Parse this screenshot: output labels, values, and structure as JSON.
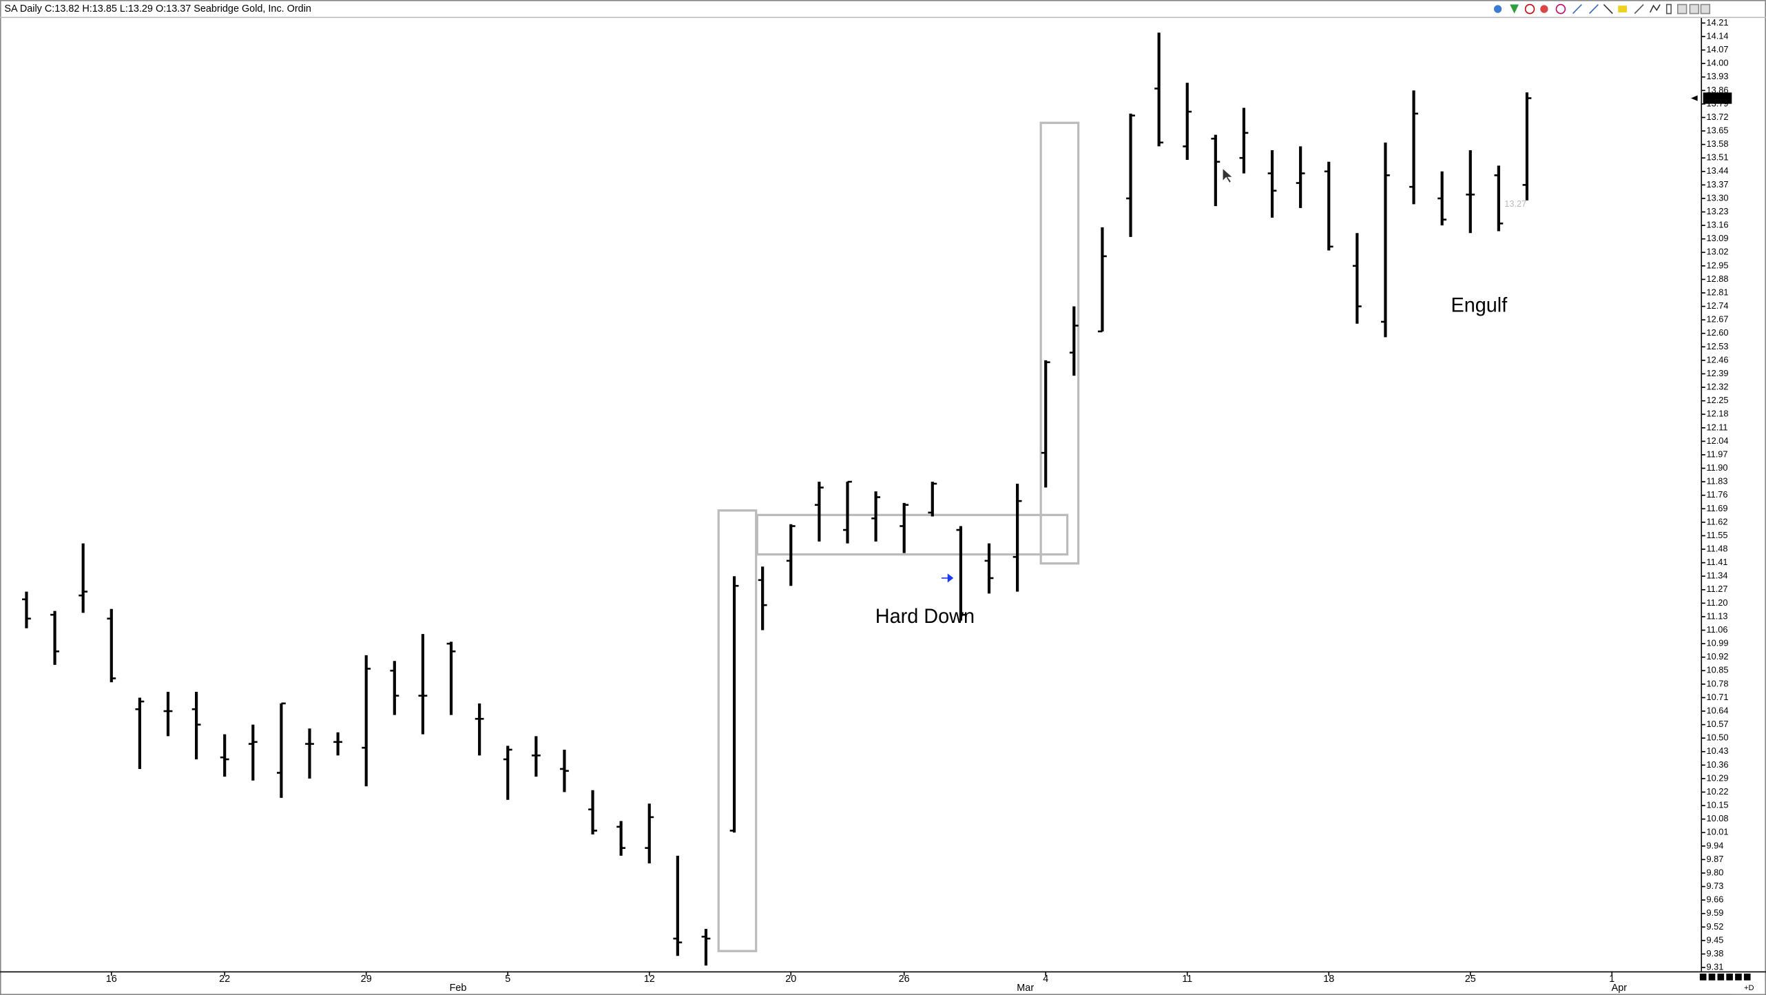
{
  "chart_data": {
    "type": "ohlc",
    "title": "SA Daily C:13.82 H:13.85 L:13.29 O:13.37 Seabridge Gold, Inc. Ordin",
    "categories": [
      null,
      null,
      null,
      "16",
      null,
      null,
      null,
      "22",
      null,
      null,
      null,
      null,
      "29",
      null,
      null,
      null,
      null,
      "5",
      null,
      null,
      null,
      null,
      "12",
      null,
      null,
      null,
      null,
      "20",
      null,
      null,
      null,
      "26",
      null,
      null,
      null,
      null,
      "4",
      null,
      null,
      null,
      null,
      "11",
      null,
      null,
      null,
      null,
      "18",
      null,
      null,
      null,
      null,
      "25",
      null,
      null,
      null,
      null,
      "1"
    ],
    "months": [
      "Feb",
      "Mar",
      "Apr"
    ],
    "open": [
      11.22,
      11.14,
      11.24,
      11.12,
      10.65,
      10.64,
      10.65,
      10.4,
      10.47,
      10.32,
      10.47,
      10.48,
      10.45,
      10.85,
      10.72,
      10.99,
      10.6,
      10.39,
      10.41,
      10.34,
      10.13,
      10.04,
      9.93,
      9.46,
      9.47,
      10.02,
      11.32,
      11.42,
      11.71,
      11.58,
      11.64,
      11.6,
      11.67,
      11.58,
      11.42,
      11.44,
      11.98,
      12.5,
      12.61,
      13.3,
      13.87,
      13.57,
      13.61,
      13.51,
      13.43,
      13.38,
      13.44,
      12.95,
      12.66,
      13.36,
      13.3,
      13.32,
      13.42,
      13.37,
      null,
      null,
      null
    ],
    "high": [
      11.26,
      11.16,
      11.51,
      11.17,
      10.71,
      10.74,
      10.74,
      10.52,
      10.57,
      10.68,
      10.55,
      10.53,
      10.93,
      10.9,
      11.04,
      11.0,
      10.68,
      10.46,
      10.51,
      10.44,
      10.23,
      10.07,
      10.16,
      9.89,
      9.51,
      11.34,
      11.39,
      11.61,
      11.83,
      11.83,
      11.78,
      11.72,
      11.83,
      11.6,
      11.51,
      11.82,
      12.46,
      12.74,
      13.15,
      13.74,
      14.16,
      13.9,
      13.63,
      13.77,
      13.55,
      13.57,
      13.49,
      13.12,
      13.59,
      13.86,
      13.44,
      13.55,
      13.47,
      13.85,
      null,
      null,
      null
    ],
    "low": [
      11.07,
      10.88,
      11.15,
      10.79,
      10.34,
      10.51,
      10.39,
      10.3,
      10.28,
      10.19,
      10.29,
      10.41,
      10.25,
      10.62,
      10.52,
      10.62,
      10.41,
      10.18,
      10.3,
      10.22,
      10.0,
      9.89,
      9.85,
      9.37,
      9.32,
      10.01,
      11.06,
      11.29,
      11.52,
      11.51,
      11.52,
      11.46,
      11.65,
      11.11,
      11.25,
      11.26,
      11.8,
      12.38,
      12.61,
      13.1,
      13.57,
      13.5,
      13.26,
      13.43,
      13.2,
      13.25,
      13.03,
      12.65,
      12.58,
      13.27,
      13.16,
      13.12,
      13.13,
      13.29,
      null,
      null,
      null
    ],
    "close": [
      11.12,
      10.95,
      11.26,
      10.81,
      10.69,
      10.64,
      10.57,
      10.39,
      10.48,
      10.68,
      10.47,
      10.48,
      10.86,
      10.72,
      10.72,
      10.95,
      10.6,
      10.44,
      10.41,
      10.33,
      10.02,
      9.93,
      10.09,
      9.44,
      9.46,
      11.29,
      11.19,
      11.6,
      11.8,
      11.83,
      11.75,
      11.71,
      11.82,
      11.14,
      11.33,
      11.73,
      12.45,
      12.64,
      13.0,
      13.73,
      13.59,
      13.75,
      13.49,
      13.64,
      13.34,
      13.43,
      13.05,
      12.74,
      13.42,
      13.74,
      13.19,
      13.32,
      13.17,
      13.82,
      null,
      null,
      null
    ],
    "color": "#000000",
    "ylim": [
      9.29,
      14.23
    ],
    "yticks": [
      9.31,
      9.38,
      9.45,
      9.52,
      9.59,
      9.66,
      9.73,
      {
        "value": 9.8,
        "label": "9.80"
      },
      9.87,
      9.94,
      10.01,
      10.08,
      10.15,
      10.22,
      10.29,
      10.36,
      10.43,
      {
        "value": 10.5,
        "label": "10.50"
      },
      10.57,
      10.64,
      10.71,
      10.78,
      10.85,
      10.92,
      10.99,
      11.06,
      11.13,
      {
        "value": 11.2,
        "label": "11.20"
      },
      11.27,
      11.34,
      11.41,
      11.48,
      11.55,
      11.62,
      11.69,
      11.76,
      11.83,
      {
        "value": 11.9,
        "label": "11.90"
      },
      11.97,
      12.04,
      12.11,
      12.18,
      12.25,
      12.32,
      12.39,
      12.46,
      12.53,
      {
        "value": 12.6,
        "label": "12.60"
      },
      12.67,
      12.74,
      12.81,
      12.88,
      12.95,
      13.02,
      13.09,
      13.16,
      13.23,
      {
        "value": 13.3,
        "label": "13.30"
      },
      13.37,
      13.44,
      13.51,
      13.58,
      13.65,
      13.72,
      13.79,
      13.86,
      13.93,
      {
        "value": 14.0,
        "label": "14.00"
      },
      14.07,
      14.14,
      14.21
    ],
    "last_price": 13.82,
    "price_marker": 13.27,
    "annotations": [
      "Hard Down",
      "Engulf"
    ],
    "corner_label": "+D"
  }
}
